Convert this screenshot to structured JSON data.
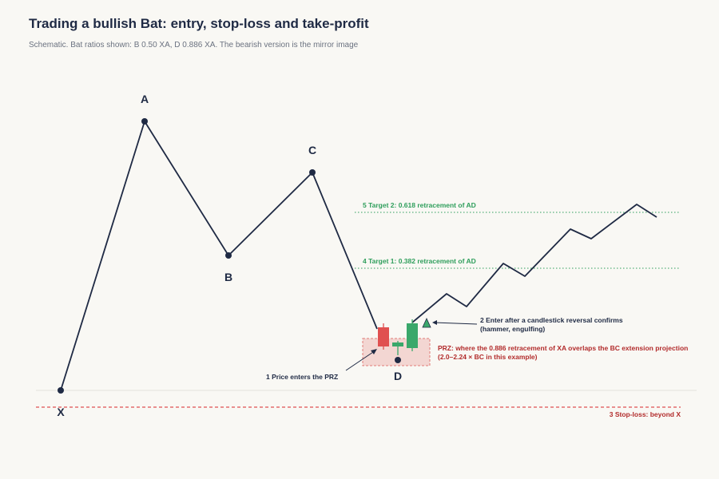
{
  "header": {
    "title": "Trading a bullish Bat: entry, stop-loss and take-profit",
    "subtitle": "Schematic. Bat ratios shown: B 0.50 XA, D 0.886 XA. The bearish version is the mirror image"
  },
  "points": {
    "x": "X",
    "a": "A",
    "b": "B",
    "c": "C",
    "d": "D"
  },
  "annotations": {
    "step1": "1  Price enters the PRZ",
    "step2_line1": "2  Enter after a candlestick reversal confirms",
    "step2_line2": "(hammer, engulfing)",
    "stop_loss": "3  Stop-loss: beyond X",
    "target1": "4  Target 1: 0.382 retracement of AD",
    "target2": "5  Target 2: 0.618 retracement of AD",
    "prz_line1": "PRZ: where the 0.886 retracement of XA overlaps the BC extension projection",
    "prz_line2": "(2.0–2.24 × BC in this example)"
  },
  "colors": {
    "line": "#1f2a44",
    "bearish_candle": "#e05050",
    "bullish_candle": "#3aa86b",
    "prz_fill": "#f3d6d2",
    "stop_loss": "#e05050",
    "target": "#2e9e5b"
  }
}
